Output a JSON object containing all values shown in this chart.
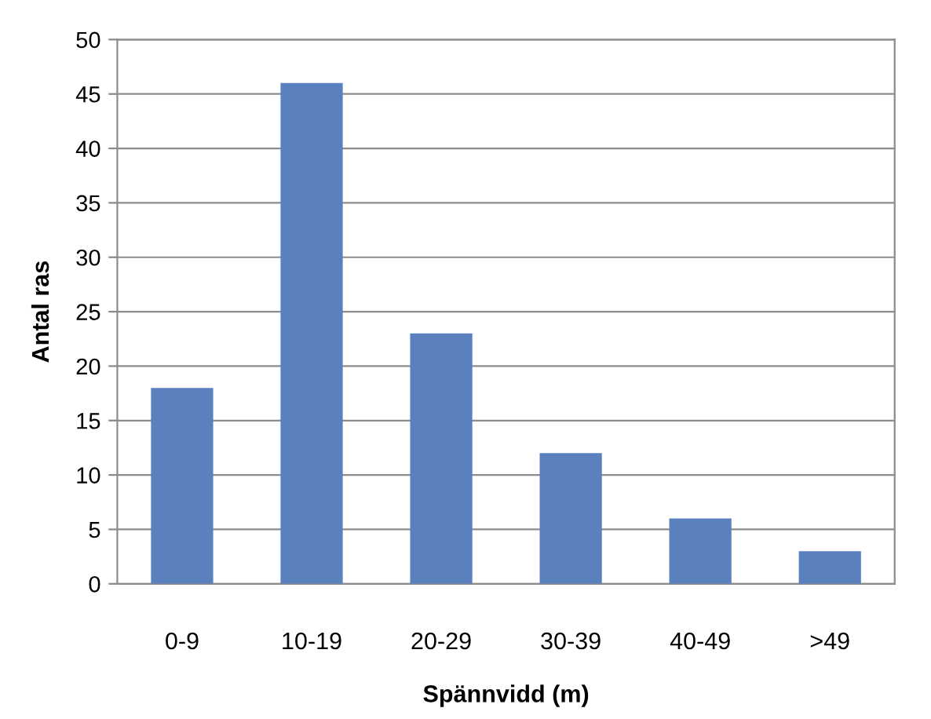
{
  "chart_data": {
    "type": "bar",
    "xlabel": "Spännvidd (m)",
    "ylabel": "Antal ras",
    "categories": [
      "0-9",
      "10-19",
      "20-29",
      "30-39",
      "40-49",
      ">49"
    ],
    "values": [
      18,
      46,
      23,
      12,
      6,
      3
    ],
    "color": "#5b80be",
    "ylim": [
      0,
      50
    ],
    "yticks": [
      0,
      5,
      10,
      15,
      20,
      25,
      30,
      35,
      40,
      45,
      50
    ],
    "grid": "y",
    "legend": false
  }
}
